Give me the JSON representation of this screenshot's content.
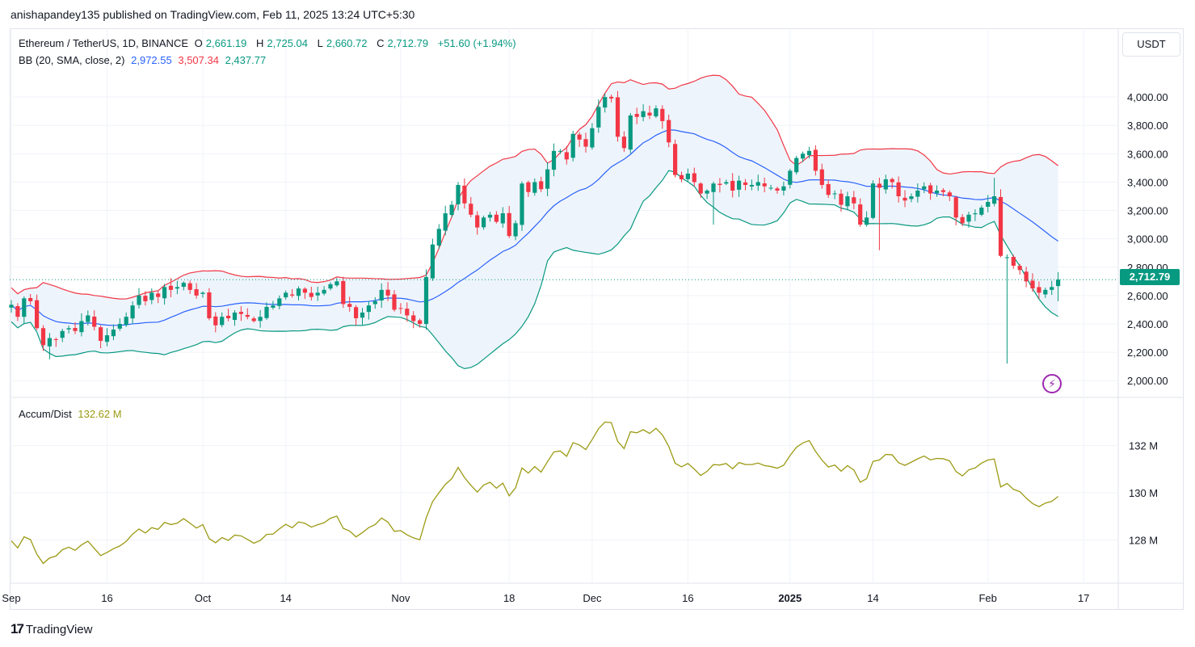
{
  "caption": "anishapandey135 published on TradingView.com, Feb 11, 2025 13:24 UTC+5:30",
  "legend": {
    "symbol": "Ethereum / TetherUS, 1D, BINANCE",
    "o_label": "O",
    "o_val": "2,661.19",
    "h_label": "H",
    "h_val": "2,725.04",
    "l_label": "L",
    "l_val": "2,660.72",
    "c_label": "C",
    "c_val": "2,712.79",
    "change": "+51.60 (+1.94%)",
    "bb_label": "BB (20, SMA, close, 2)",
    "bb_basis": "2,972.55",
    "bb_upper": "3,507.34",
    "bb_lower": "2,437.77",
    "ad_label": "Accum/Dist",
    "ad_value": "132.62 M"
  },
  "unit": "USDT",
  "last_price_tag": "2,712.79",
  "brand": "TradingView",
  "colors": {
    "up": "#089981",
    "down": "#f23645",
    "basis": "#2962ff",
    "upper": "#f23645",
    "lower": "#089981",
    "ad": "#9c9a14",
    "band_fill": "#eef4fb"
  },
  "chart_data": [
    {
      "type": "candlestick",
      "ylim": [
        1950,
        4200
      ],
      "yticks": [
        2000,
        2200,
        2400,
        2600,
        2800,
        3000,
        3200,
        3400,
        3600,
        3800,
        4000
      ],
      "ytick_labels": [
        "2,000.00",
        "2,200.00",
        "2,400.00",
        "2,600.00",
        "2,800.00",
        "3,000.00",
        "3,200.00",
        "3,400.00",
        "3,600.00",
        "3,800.00",
        "4,000.00"
      ],
      "xticks": [
        {
          "label": "Sep",
          "i": 0
        },
        {
          "label": "16",
          "i": 15
        },
        {
          "label": "Oct",
          "i": 30
        },
        {
          "label": "14",
          "i": 43
        },
        {
          "label": "Nov",
          "i": 61
        },
        {
          "label": "18",
          "i": 78
        },
        {
          "label": "Dec",
          "i": 91
        },
        {
          "label": "16",
          "i": 106
        },
        {
          "label": "2025",
          "i": 122
        },
        {
          "label": "14",
          "i": 135
        },
        {
          "label": "Feb",
          "i": 153
        },
        {
          "label": "17",
          "i": 168
        }
      ],
      "first_day": "2024-09-01",
      "closes": [
        2535,
        2450,
        2580,
        2560,
        2370,
        2250,
        2300,
        2290,
        2350,
        2370,
        2350,
        2420,
        2460,
        2380,
        2280,
        2320,
        2360,
        2400,
        2450,
        2530,
        2600,
        2560,
        2620,
        2590,
        2660,
        2640,
        2660,
        2690,
        2640,
        2600,
        2620,
        2440,
        2390,
        2450,
        2440,
        2480,
        2470,
        2450,
        2420,
        2450,
        2520,
        2530,
        2580,
        2620,
        2600,
        2650,
        2620,
        2590,
        2620,
        2640,
        2680,
        2700,
        2540,
        2520,
        2440,
        2480,
        2530,
        2560,
        2640,
        2600,
        2500,
        2510,
        2460,
        2420,
        2400,
        2730,
        2960,
        3070,
        3180,
        3240,
        3380,
        3250,
        3170,
        3080,
        3150,
        3170,
        3120,
        3180,
        3020,
        3110,
        3390,
        3330,
        3400,
        3350,
        3490,
        3620,
        3620,
        3560,
        3740,
        3700,
        3650,
        3780,
        3930,
        4000,
        3990,
        3720,
        3640,
        3870,
        3860,
        3900,
        3870,
        3920,
        3830,
        3680,
        3450,
        3420,
        3460,
        3400,
        3320,
        3340,
        3390,
        3380,
        3400,
        3340,
        3410,
        3380,
        3380,
        3400,
        3370,
        3360,
        3340,
        3370,
        3480,
        3570,
        3600,
        3620,
        3480,
        3380,
        3310,
        3320,
        3240,
        3300,
        3250,
        3100,
        3150,
        3390,
        3360,
        3420,
        3400,
        3300,
        3270,
        3300,
        3340,
        3370,
        3320,
        3340,
        3330,
        3300,
        3150,
        3110,
        3170,
        3180,
        3220,
        3260,
        3300,
        2880,
        2870,
        2810,
        2780,
        2700,
        2650,
        2620,
        2640,
        2660,
        2712
      ]
    },
    {
      "type": "line",
      "name": "Accum/Dist",
      "ylim": [
        126.4,
        133.6
      ],
      "yticks": [
        128,
        130,
        132
      ],
      "ytick_labels": [
        "128 M",
        "130 M",
        "132 M"
      ]
    }
  ]
}
